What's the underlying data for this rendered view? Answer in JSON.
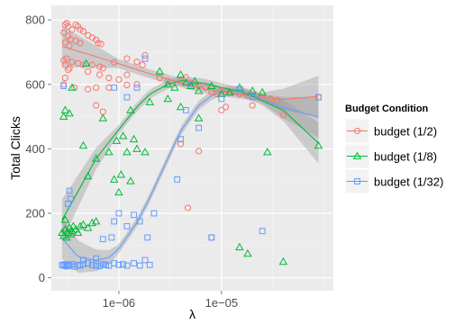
{
  "chart_data": {
    "type": "scatter",
    "title": "",
    "xlabel": "λ",
    "ylabel": "Total Clicks",
    "x_scale": "log",
    "xlim": [
      2.2e-07,
      0.000123
    ],
    "ylim": [
      -40,
      845
    ],
    "x_ticks": [
      1e-06,
      1e-05
    ],
    "x_tick_labels": [
      "1e−06",
      "1e−05"
    ],
    "y_ticks": [
      0,
      200,
      400,
      600,
      800
    ],
    "y_tick_labels": [
      "0",
      "200",
      "400",
      "600",
      "800"
    ],
    "grid": true,
    "legend": {
      "title": "Budget Condition",
      "position": "right"
    },
    "series": [
      {
        "name": "budget (1/2)",
        "color": "#F8766D",
        "marker": "circle",
        "points": [
          [
            2.9e-07,
            760
          ],
          [
            3e-07,
            785
          ],
          [
            3.1e-07,
            790
          ],
          [
            3.2e-07,
            780
          ],
          [
            3.5e-07,
            770
          ],
          [
            3.8e-07,
            785
          ],
          [
            4e-07,
            780
          ],
          [
            4.2e-07,
            770
          ],
          [
            4.5e-07,
            765
          ],
          [
            3.2e-07,
            750
          ],
          [
            3.4e-07,
            740
          ],
          [
            3.8e-07,
            735
          ],
          [
            4.2e-07,
            728
          ],
          [
            3e-07,
            730
          ],
          [
            3.3e-07,
            720
          ],
          [
            5e-07,
            752
          ],
          [
            5.5e-07,
            745
          ],
          [
            6e-07,
            738
          ],
          [
            6.3e-07,
            728
          ],
          [
            6.7e-07,
            725
          ],
          [
            3.5e-07,
            670
          ],
          [
            4e-07,
            665
          ],
          [
            4.5e-07,
            660
          ],
          [
            3.1e-07,
            680
          ],
          [
            2.9e-07,
            675
          ],
          [
            3e-07,
            660
          ],
          [
            3.3e-07,
            650
          ],
          [
            3e-07,
            620
          ],
          [
            3.2e-07,
            645
          ],
          [
            5e-07,
            640
          ],
          [
            5.5e-07,
            660
          ],
          [
            6.5e-07,
            655
          ],
          [
            7e-07,
            650
          ],
          [
            9e-07,
            668
          ],
          [
            1.2e-06,
            680
          ],
          [
            1.5e-06,
            670
          ],
          [
            1.7e-06,
            660
          ],
          [
            6.5e-07,
            630
          ],
          [
            8e-07,
            620
          ],
          [
            1e-06,
            615
          ],
          [
            1.2e-06,
            630
          ],
          [
            1.5e-06,
            600
          ],
          [
            2.5e-06,
            620
          ],
          [
            3e-06,
            610
          ],
          [
            4e-06,
            610
          ],
          [
            4.5e-06,
            622
          ],
          [
            5e-06,
            605
          ],
          [
            5.5e-06,
            600
          ],
          [
            6e-06,
            595
          ],
          [
            7e-06,
            590
          ],
          [
            8e-06,
            575
          ],
          [
            9e-06,
            570
          ],
          [
            1e-05,
            580
          ],
          [
            1.2e-05,
            575
          ],
          [
            1.5e-05,
            570
          ],
          [
            1.8e-05,
            565
          ],
          [
            2.5e-05,
            560
          ],
          [
            3e-05,
            555
          ],
          [
            3.5e-05,
            550
          ],
          [
            4e-05,
            505
          ],
          [
            2e-05,
            535
          ],
          [
            1e-05,
            520
          ],
          [
            1.1e-05,
            530
          ],
          [
            1.8e-06,
            690
          ],
          [
            8e-07,
            590
          ],
          [
            1.2e-06,
            598
          ],
          [
            6e-07,
            590
          ],
          [
            5e-07,
            585
          ],
          [
            3.7e-07,
            590
          ],
          [
            6e-07,
            535
          ],
          [
            7e-07,
            515
          ],
          [
            2.9e-07,
            600
          ],
          [
            4e-06,
            415
          ],
          [
            6e-06,
            393
          ],
          [
            4.7e-06,
            217
          ],
          [
            8e-06,
            125
          ],
          [
            8.8e-05,
            560
          ]
        ],
        "fit": [
          [
            2.8e-07,
            718
          ],
          [
            4e-07,
            703
          ],
          [
            6e-07,
            686
          ],
          [
            1e-06,
            664
          ],
          [
            2e-06,
            633
          ],
          [
            4e-06,
            605
          ],
          [
            7e-06,
            585
          ],
          [
            1e-05,
            577
          ],
          [
            2e-05,
            565
          ],
          [
            4e-05,
            553
          ],
          [
            8.8e-05,
            563
          ]
        ]
      },
      {
        "name": "budget (1/8)",
        "color": "#00BA38",
        "marker": "triangle",
        "points": [
          [
            2.8e-07,
            140
          ],
          [
            2.9e-07,
            130
          ],
          [
            3e-07,
            150
          ],
          [
            3.1e-07,
            125
          ],
          [
            3.2e-07,
            140
          ],
          [
            3.3e-07,
            155
          ],
          [
            3.4e-07,
            135
          ],
          [
            3.5e-07,
            145
          ],
          [
            3.6e-07,
            160
          ],
          [
            3.8e-07,
            150
          ],
          [
            4e-07,
            140
          ],
          [
            4.2e-07,
            160
          ],
          [
            4.5e-07,
            165
          ],
          [
            5e-07,
            155
          ],
          [
            5.5e-07,
            170
          ],
          [
            6e-07,
            175
          ],
          [
            3e-07,
            180
          ],
          [
            2.9e-07,
            500
          ],
          [
            3e-07,
            520
          ],
          [
            3.3e-07,
            510
          ],
          [
            3.5e-07,
            590
          ],
          [
            4.5e-07,
            410
          ],
          [
            5e-07,
            315
          ],
          [
            4.8e-07,
            665
          ],
          [
            6e-07,
            370
          ],
          [
            7e-07,
            495
          ],
          [
            8e-07,
            390
          ],
          [
            9e-07,
            305
          ],
          [
            9.5e-07,
            425
          ],
          [
            1e-06,
            265
          ],
          [
            1.05e-06,
            320
          ],
          [
            1.1e-06,
            440
          ],
          [
            1.2e-06,
            390
          ],
          [
            1.3e-06,
            300
          ],
          [
            1.3e-06,
            520
          ],
          [
            1.4e-06,
            430
          ],
          [
            1.5e-06,
            400
          ],
          [
            1.8e-06,
            390
          ],
          [
            2e-06,
            545
          ],
          [
            2.5e-06,
            640
          ],
          [
            3e-06,
            600
          ],
          [
            3.5e-06,
            590
          ],
          [
            4e-06,
            630
          ],
          [
            4.5e-06,
            605
          ],
          [
            5e-06,
            595
          ],
          [
            5.5e-06,
            610
          ],
          [
            6e-06,
            580
          ],
          [
            8e-06,
            595
          ],
          [
            1e-05,
            570
          ],
          [
            1.2e-05,
            575
          ],
          [
            1.5e-05,
            590
          ],
          [
            2e-05,
            580
          ],
          [
            2.5e-05,
            575
          ],
          [
            2.8e-05,
            390
          ],
          [
            4e-06,
            530
          ],
          [
            3e-06,
            555
          ],
          [
            6e-06,
            495
          ],
          [
            1.5e-05,
            95
          ],
          [
            1.8e-05,
            75
          ],
          [
            4e-05,
            50
          ],
          [
            8.8e-05,
            410
          ]
        ],
        "fit": [
          [
            2.8e-07,
            180
          ],
          [
            4e-07,
            268
          ],
          [
            6e-07,
            370
          ],
          [
            1e-06,
            460
          ],
          [
            1.5e-06,
            530
          ],
          [
            2e-06,
            570
          ],
          [
            3e-06,
            600
          ],
          [
            4e-06,
            612
          ],
          [
            7e-06,
            603
          ],
          [
            1e-05,
            590
          ],
          [
            1.5e-05,
            578
          ],
          [
            2e-05,
            563
          ],
          [
            4e-05,
            520
          ],
          [
            8.8e-05,
            418
          ]
        ]
      },
      {
        "name": "budget (1/32)",
        "color": "#619CFF",
        "marker": "square",
        "points": [
          [
            2.8e-07,
            40
          ],
          [
            2.9e-07,
            38
          ],
          [
            3e-07,
            42
          ],
          [
            3.1e-07,
            36
          ],
          [
            3.2e-07,
            40
          ],
          [
            3.3e-07,
            38
          ],
          [
            3.5e-07,
            42
          ],
          [
            3.7e-07,
            35
          ],
          [
            4e-07,
            40
          ],
          [
            4.2e-07,
            38
          ],
          [
            4.5e-07,
            42
          ],
          [
            5e-07,
            45
          ],
          [
            5.5e-07,
            40
          ],
          [
            6e-07,
            38
          ],
          [
            6.5e-07,
            36
          ],
          [
            7e-07,
            42
          ],
          [
            7.5e-07,
            40
          ],
          [
            8e-07,
            38
          ],
          [
            9e-07,
            45
          ],
          [
            1e-06,
            40
          ],
          [
            1.1e-06,
            42
          ],
          [
            1.2e-06,
            38
          ],
          [
            1.4e-06,
            45
          ],
          [
            1.6e-06,
            38
          ],
          [
            1.8e-06,
            55
          ],
          [
            2e-06,
            40
          ],
          [
            3.2e-07,
            230
          ],
          [
            3.3e-07,
            270
          ],
          [
            3.4e-07,
            245
          ],
          [
            2.9e-07,
            595
          ],
          [
            4.5e-07,
            55
          ],
          [
            6e-07,
            60
          ],
          [
            7e-07,
            120
          ],
          [
            8.5e-07,
            125
          ],
          [
            9e-07,
            175
          ],
          [
            1e-06,
            200
          ],
          [
            1.2e-06,
            160
          ],
          [
            1.4e-06,
            195
          ],
          [
            1.6e-06,
            175
          ],
          [
            1.9e-06,
            125
          ],
          [
            2.2e-06,
            200
          ],
          [
            3.7e-06,
            305
          ],
          [
            4e-06,
            430
          ],
          [
            4.5e-06,
            520
          ],
          [
            5e-06,
            600
          ],
          [
            6e-06,
            465
          ],
          [
            1e-05,
            555
          ],
          [
            1.5e-05,
            585
          ],
          [
            2.5e-05,
            145
          ],
          [
            2e-05,
            560
          ],
          [
            8e-06,
            125
          ],
          [
            8.8e-05,
            560
          ],
          [
            1.2e-06,
            560
          ],
          [
            1.5e-06,
            590
          ],
          [
            1.8e-06,
            680
          ],
          [
            9e-07,
            590
          ]
        ],
        "fit": [
          [
            2.8e-07,
            123
          ],
          [
            4e-07,
            65
          ],
          [
            6e-07,
            54
          ],
          [
            8e-07,
            63
          ],
          [
            1e-06,
            90
          ],
          [
            1.5e-06,
            172
          ],
          [
            2e-06,
            248
          ],
          [
            3e-06,
            370
          ],
          [
            4e-06,
            455
          ],
          [
            6e-06,
            535
          ],
          [
            8e-06,
            565
          ],
          [
            1e-05,
            578
          ],
          [
            1.5e-05,
            580
          ],
          [
            2e-05,
            568
          ],
          [
            4e-05,
            528
          ],
          [
            8.8e-05,
            498
          ]
        ]
      }
    ]
  }
}
